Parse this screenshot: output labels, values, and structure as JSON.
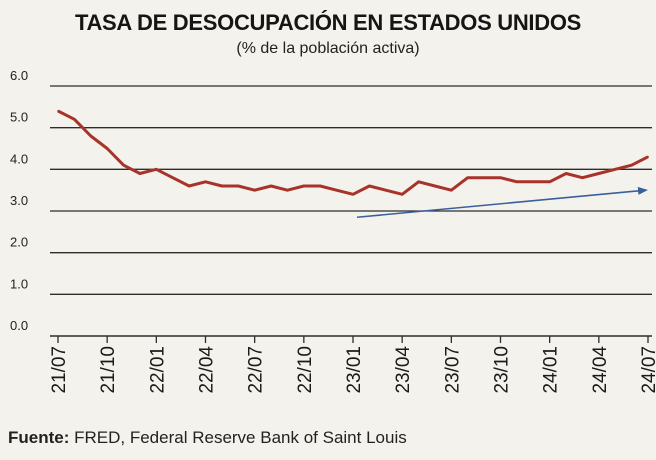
{
  "chart_data": {
    "type": "line",
    "title": "TASA DE DESOCUPACIÓN EN ESTADOS UNIDOS",
    "subtitle": "(% de la población activa)",
    "xlabel": "",
    "ylabel": "",
    "ylim": [
      0,
      6
    ],
    "yticks": [
      "0.0",
      "1.0",
      "2.0",
      "3.0",
      "4.0",
      "5.0",
      "6.0"
    ],
    "x_tick_labels": [
      "21/07",
      "21/10",
      "22/01",
      "22/04",
      "22/07",
      "22/10",
      "23/01",
      "23/04",
      "23/07",
      "23/10",
      "24/01",
      "24/04",
      "24/07"
    ],
    "grid": true,
    "series": [
      {
        "color": "#a8332a",
        "x": [
          "21/07",
          "21/08",
          "21/09",
          "21/10",
          "21/11",
          "21/12",
          "22/01",
          "22/02",
          "22/03",
          "22/04",
          "22/05",
          "22/06",
          "22/07",
          "22/08",
          "22/09",
          "22/10",
          "22/11",
          "22/12",
          "23/01",
          "23/02",
          "23/03",
          "23/04",
          "23/05",
          "23/06",
          "23/07",
          "23/08",
          "23/09",
          "23/10",
          "23/11",
          "23/12",
          "24/01",
          "24/02",
          "24/03",
          "24/04",
          "24/05",
          "24/06",
          "24/07"
        ],
        "values": [
          5.4,
          5.2,
          4.8,
          4.5,
          4.1,
          3.9,
          4.0,
          3.8,
          3.6,
          3.7,
          3.6,
          3.6,
          3.5,
          3.6,
          3.5,
          3.6,
          3.6,
          3.5,
          3.4,
          3.6,
          3.5,
          3.4,
          3.7,
          3.6,
          3.5,
          3.8,
          3.8,
          3.8,
          3.7,
          3.7,
          3.7,
          3.9,
          3.8,
          3.9,
          4.0,
          4.1,
          4.3
        ]
      }
    ],
    "annotations": [
      {
        "type": "arrow",
        "color": "#3a5f9e",
        "from": {
          "x": "23/01",
          "y": 2.85
        },
        "to": {
          "x": "24/07",
          "y": 3.5
        }
      }
    ]
  },
  "source": {
    "label": "Fuente:",
    "text": "FRED, Federal Reserve Bank of Saint Louis"
  }
}
